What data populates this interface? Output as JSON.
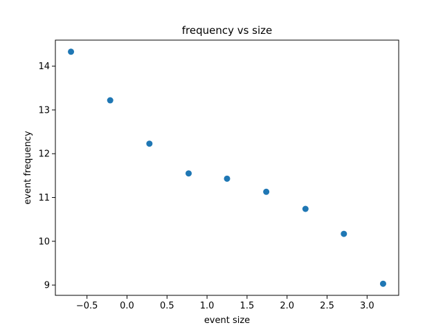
{
  "chart_data": {
    "type": "scatter",
    "title": "frequency vs size",
    "xlabel": "event size",
    "ylabel": "event frequency",
    "x": [
      -0.7,
      -0.21,
      0.28,
      0.77,
      1.25,
      1.74,
      2.23,
      2.71,
      3.2
    ],
    "y": [
      14.33,
      13.22,
      12.23,
      11.55,
      11.43,
      11.13,
      10.74,
      10.17,
      9.03
    ],
    "xlim": [
      -0.895,
      3.395
    ],
    "ylim": [
      8.765,
      14.595
    ],
    "xticks": [
      -0.5,
      0.0,
      0.5,
      1.0,
      1.5,
      2.0,
      2.5,
      3.0
    ],
    "xtick_labels": [
      "−0.5",
      "0.0",
      "0.5",
      "1.0",
      "1.5",
      "2.0",
      "2.5",
      "3.0"
    ],
    "yticks": [
      9,
      10,
      11,
      12,
      13,
      14
    ],
    "ytick_labels": [
      "9",
      "10",
      "11",
      "12",
      "13",
      "14"
    ],
    "grid": false,
    "marker_color": "#1f77b4"
  }
}
